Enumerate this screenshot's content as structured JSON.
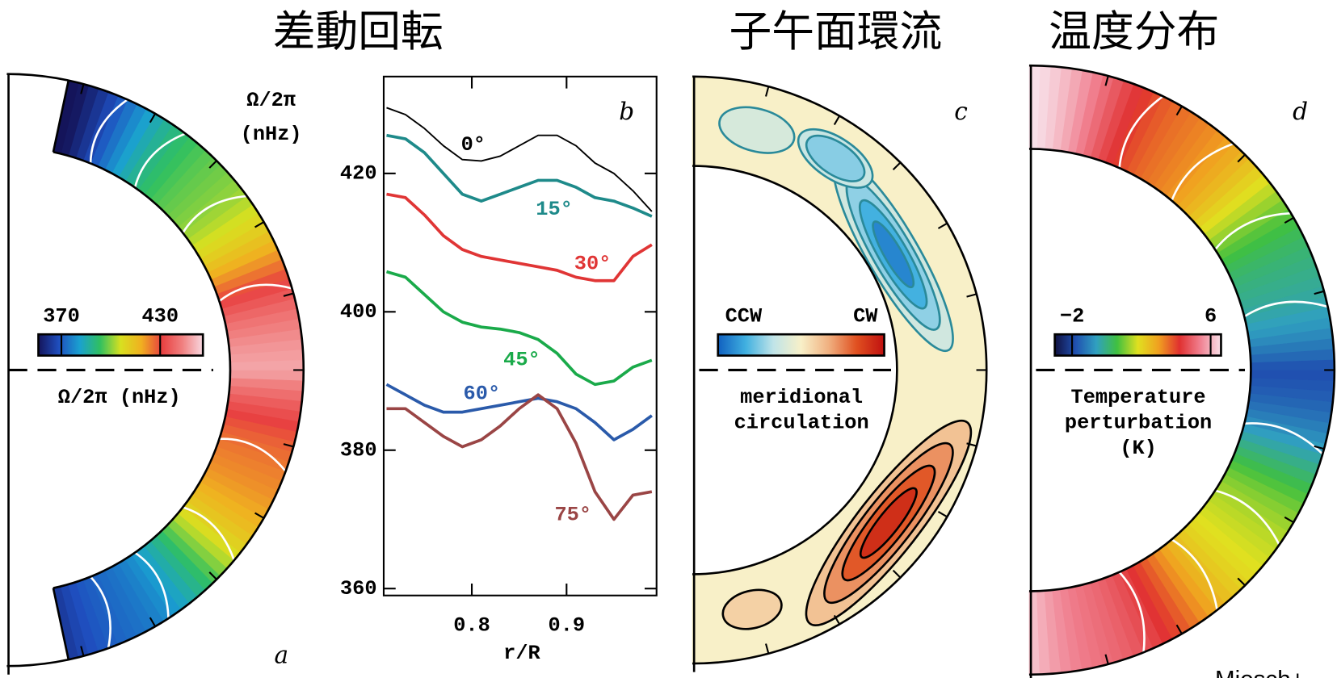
{
  "chart_data": [
    {
      "type": "shell",
      "panel": "a",
      "title": "差動回転",
      "field": "rotation",
      "corner_label": [
        "Ω/2π",
        "(nHz)"
      ],
      "colorbar_label": "Ω/2π (nHz)",
      "clim": [
        356,
        456
      ],
      "colorbar_ticks": [
        370,
        430
      ],
      "colormap": [
        "#14145a",
        "#1f4fbf",
        "#1aa0d0",
        "#30c060",
        "#d8e020",
        "#f0b020",
        "#e84040",
        "#f08080",
        "#f8d8e0"
      ]
    },
    {
      "type": "line",
      "panel": "b",
      "xlabel": "r/R",
      "x": [
        0.71,
        0.73,
        0.75,
        0.77,
        0.79,
        0.81,
        0.83,
        0.85,
        0.87,
        0.89,
        0.91,
        0.93,
        0.95,
        0.97,
        0.99
      ],
      "xlim": [
        0.707,
        0.995
      ],
      "xticks": [
        0.8,
        0.9
      ],
      "ylim": [
        359,
        434
      ],
      "yticks": [
        360,
        380,
        400,
        420
      ],
      "series": [
        {
          "name": "0°",
          "color": "#000000",
          "values": [
            429.5,
            428.5,
            426.5,
            424,
            422,
            421.8,
            422.5,
            424,
            425.5,
            425.5,
            424,
            421.5,
            420,
            417.5,
            414.5
          ]
        },
        {
          "name": "15°",
          "color": "#1e8a8a",
          "values": [
            425.5,
            425,
            423,
            420,
            417,
            416,
            417,
            418,
            419,
            419,
            418,
            416.5,
            416,
            415,
            413.8
          ]
        },
        {
          "name": "30°",
          "color": "#e03535",
          "values": [
            417,
            416.5,
            414,
            411,
            409,
            408,
            407.5,
            407,
            406.5,
            406,
            405,
            404.5,
            404.5,
            408,
            409.7
          ]
        },
        {
          "name": "45°",
          "color": "#1aaa4a",
          "values": [
            405.8,
            405,
            402.5,
            400,
            398.5,
            397.8,
            397.5,
            397,
            396,
            394,
            391,
            389.5,
            390,
            392,
            393
          ]
        },
        {
          "name": "60°",
          "color": "#2a5aaa",
          "values": [
            389.5,
            388,
            386.5,
            385.5,
            385.5,
            386,
            386.5,
            387,
            387.5,
            387,
            386,
            384,
            381.5,
            383,
            385
          ]
        },
        {
          "name": "75°",
          "color": "#9a4545",
          "values": [
            386,
            386,
            384,
            382,
            380.5,
            381.5,
            383.5,
            386,
            388,
            386,
            381,
            374,
            370,
            373.5,
            374
          ]
        }
      ]
    },
    {
      "type": "shell",
      "panel": "c",
      "title": "子午面環流",
      "field": "circulation",
      "colorbar_ends": [
        "CCW",
        "CW"
      ],
      "colorbar_label": [
        "meridional",
        "circulation"
      ],
      "colormap": [
        "#1060c0",
        "#40b0e0",
        "#c0e4e8",
        "#f8f0c8",
        "#f0b080",
        "#e05020",
        "#c01010"
      ]
    },
    {
      "type": "shell",
      "panel": "d",
      "title": "温度分布",
      "field": "temperature",
      "colorbar_label": [
        "Temperature",
        "perturbation",
        "(K)"
      ],
      "clim": [
        -3,
        6.6
      ],
      "colorbar_ticks": [
        {
          "value": -2,
          "label": "−2"
        },
        6
      ],
      "colormap": [
        "#101040",
        "#2050b0",
        "#30a0c0",
        "#40c040",
        "#e0e020",
        "#f0a020",
        "#e03030",
        "#f08090",
        "#f8e0e8"
      ]
    }
  ],
  "credit": "Miesch+"
}
